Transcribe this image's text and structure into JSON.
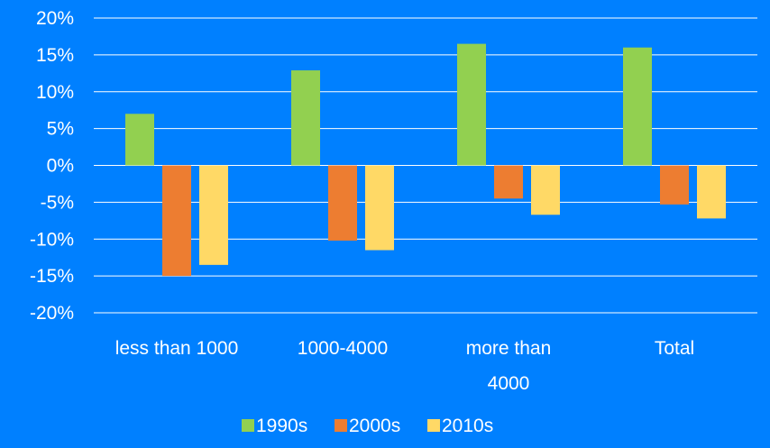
{
  "chart_data": {
    "type": "bar",
    "title": "",
    "xlabel": "",
    "ylabel": "",
    "ylim": [
      -20,
      20
    ],
    "y_ticks": [
      "20%",
      "15%",
      "10%",
      "5%",
      "0%",
      "-5%",
      "-10%",
      "-15%",
      "-20%"
    ],
    "y_tick_values": [
      20,
      15,
      10,
      5,
      0,
      -5,
      -10,
      -15,
      -20
    ],
    "categories": [
      [
        "less than 1000"
      ],
      [
        "1000-4000"
      ],
      [
        "more than",
        "4000"
      ],
      [
        "Total"
      ]
    ],
    "series": [
      {
        "name": "1990s",
        "color": "#92d050",
        "values": [
          7.0,
          12.9,
          16.5,
          16.0
        ]
      },
      {
        "name": "2000s",
        "color": "#ed7d31",
        "values": [
          -15.0,
          -10.2,
          -4.5,
          -5.3
        ]
      },
      {
        "name": "2010s",
        "color": "#ffd966",
        "values": [
          -13.5,
          -11.5,
          -6.7,
          -7.2
        ]
      }
    ],
    "grid": true,
    "legend_position": "bottom",
    "colors": {
      "background": "#0080ff",
      "gridline": "#ffffff",
      "text": "#ffffff"
    }
  }
}
